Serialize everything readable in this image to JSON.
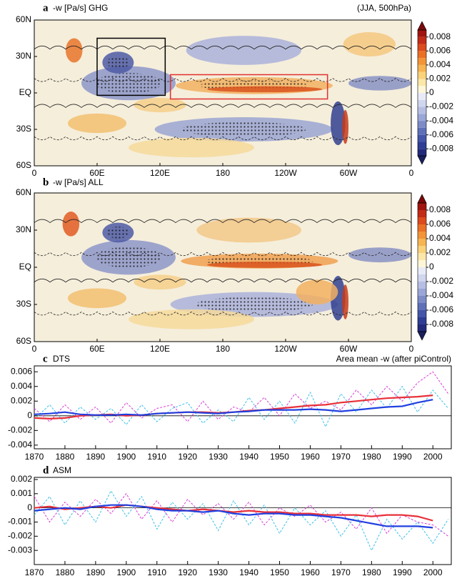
{
  "chart_data": [
    {
      "type": "map",
      "label": "a",
      "title": "-w [Pa/s] GHG",
      "subtitle": "(JJA, 500hPa)",
      "xlim": [
        0,
        360
      ],
      "xticks": [
        0,
        {
          "value": 60,
          "label": "60E"
        },
        {
          "value": 120,
          "label": "120E"
        },
        180,
        {
          "value": 240,
          "label": "120W"
        },
        {
          "value": 300,
          "label": "60W"
        },
        {
          "value": 360,
          "label": "0"
        }
      ],
      "ylim": [
        -60,
        60
      ],
      "yticks": [
        {
          "value": -60,
          "label": "60S"
        },
        {
          "value": -30,
          "label": "30S"
        },
        {
          "value": 0,
          "label": "EQ"
        },
        {
          "value": 30,
          "label": "30N"
        },
        {
          "value": 60,
          "label": "60N"
        }
      ],
      "clim": [
        -0.009,
        0.009
      ],
      "cticks": [
        -0.008,
        -0.006,
        -0.004,
        -0.002,
        0,
        0.002,
        0.004,
        0.006,
        0.008
      ],
      "colors": [
        "#1a1f5e",
        "#232a7a",
        "#2f3d95",
        "#4556a8",
        "#5f70b8",
        "#7d8bc7",
        "#9aa6d6",
        "#b6bfe3",
        "#d0d6ee",
        "#e8ebf7",
        "#fdf6d8",
        "#fbe7a8",
        "#f9d27a",
        "#f6b452",
        "#f29437",
        "#ea7026",
        "#db4b1d",
        "#c22b17",
        "#a0150f",
        "#7a0a0a"
      ]
    },
    {
      "type": "map",
      "label": "b",
      "title": "-w [Pa/s] ALL",
      "xlim": [
        0,
        360
      ],
      "xticks": [
        0,
        {
          "value": 60,
          "label": "60E"
        },
        {
          "value": 120,
          "label": "120E"
        },
        180,
        {
          "value": 240,
          "label": "120W"
        },
        {
          "value": 300,
          "label": "60W"
        },
        {
          "value": 360,
          "label": "0"
        }
      ],
      "ylim": [
        -60,
        60
      ],
      "yticks": [
        {
          "value": -60,
          "label": "60S"
        },
        {
          "value": -30,
          "label": "30S"
        },
        {
          "value": 0,
          "label": "EQ"
        },
        {
          "value": 30,
          "label": "30N"
        },
        {
          "value": 60,
          "label": "60N"
        }
      ],
      "clim": [
        -0.009,
        0.009
      ],
      "cticks": [
        -0.008,
        -0.006,
        -0.004,
        -0.002,
        0,
        0.002,
        0.004,
        0.006,
        0.008
      ],
      "colors": [
        "#1a1f5e",
        "#232a7a",
        "#2f3d95",
        "#4556a8",
        "#5f70b8",
        "#7d8bc7",
        "#9aa6d6",
        "#b6bfe3",
        "#d0d6ee",
        "#e8ebf7",
        "#fdf6d8",
        "#fbe7a8",
        "#f9d27a",
        "#f6b452",
        "#f29437",
        "#ea7026",
        "#db4b1d",
        "#c22b17",
        "#a0150f",
        "#7a0a0a"
      ]
    },
    {
      "type": "line",
      "label": "c",
      "title": "DTS",
      "subtitle": "Area mean -w (after piControl)",
      "x": [
        1870,
        1875,
        1880,
        1885,
        1890,
        1895,
        1900,
        1905,
        1910,
        1915,
        1920,
        1925,
        1930,
        1935,
        1940,
        1945,
        1950,
        1955,
        1960,
        1965,
        1970,
        1975,
        1980,
        1985,
        1990,
        1995,
        2000,
        2005
      ],
      "xlim": [
        1870,
        2006
      ],
      "xticks": [
        1870,
        1880,
        1890,
        1900,
        1910,
        1920,
        1930,
        1940,
        1950,
        1960,
        1970,
        1980,
        1990,
        2000
      ],
      "ylim": [
        -0.0045,
        0.0068
      ],
      "yticks": [
        -0.004,
        -0.002,
        0,
        0.002,
        0.004,
        0.006
      ],
      "series": [
        {
          "color": "#d63cd6",
          "linestyle": "dashed",
          "values": [
            0.001,
            -0.0008,
            0.0015,
            -0.0005,
            0.0012,
            -0.001,
            0.0018,
            -0.0003,
            0.001,
            0.0015,
            -0.0008,
            0.002,
            -0.0005,
            0.0012,
            0.0005,
            0.0025,
            0,
            0.003,
            0.001,
            0.002,
            0.0008,
            0.0035,
            0.0015,
            0.004,
            0.002,
            0.0045,
            0.006,
            0.003
          ]
        },
        {
          "color": "#3cc0e8",
          "linestyle": "dashed",
          "values": [
            -0.0005,
            0.0015,
            -0.001,
            0.0012,
            -0.0005,
            0.001,
            -0.0012,
            0.0015,
            -0.0008,
            0.001,
            0.0018,
            -0.001,
            0.0008,
            -0.0008,
            0.0025,
            -0.0005,
            0.002,
            -0.001,
            0.0032,
            -0.0015,
            0.003,
            0.0005,
            0.0035,
            0.001,
            0.004,
            0.0005,
            0.0035,
            0.001
          ]
        },
        {
          "color": "#e8303a",
          "linestyle": "solid",
          "values": [
            -0.0003,
            -0.0004,
            -0.0003,
            0,
            0.0001,
            0.0002,
            0,
            0.0001,
            0.0003,
            0.0004,
            0.0005,
            0.0005,
            0.0004,
            0.0005,
            0.0007,
            0.0008,
            0.001,
            0.0012,
            0.0014,
            0.0015,
            0.0018,
            0.002,
            0.0022,
            0.0024,
            0.0025,
            0.0026,
            0.0028,
            null
          ]
        },
        {
          "color": "#2040e0",
          "linestyle": "solid",
          "values": [
            0.0002,
            0.0003,
            0.0005,
            0.0002,
            0.0001,
            0.0001,
            0.0002,
            0.0001,
            0.0003,
            0.0004,
            0.0005,
            0.0004,
            0.0003,
            0.0005,
            0.0006,
            0.0008,
            0.0008,
            0.0008,
            0.0009,
            0.0008,
            0.0006,
            0.0008,
            0.001,
            0.0012,
            0.0013,
            0.0018,
            0.0022,
            null
          ]
        }
      ]
    },
    {
      "type": "line",
      "label": "d",
      "title": "ASM",
      "x": [
        1870,
        1875,
        1880,
        1885,
        1890,
        1895,
        1900,
        1905,
        1910,
        1915,
        1920,
        1925,
        1930,
        1935,
        1940,
        1945,
        1950,
        1955,
        1960,
        1965,
        1970,
        1975,
        1980,
        1985,
        1990,
        1995,
        2000,
        2005
      ],
      "xlim": [
        1870,
        2006
      ],
      "xticks": [
        1870,
        1880,
        1890,
        1900,
        1910,
        1920,
        1930,
        1940,
        1950,
        1960,
        1970,
        1980,
        1990,
        2000
      ],
      "ylim": [
        -0.004,
        0.00215
      ],
      "yticks": [
        -0.003,
        -0.002,
        -0.001,
        0,
        0.001,
        0.002
      ],
      "series": [
        {
          "color": "#d63cd6",
          "linestyle": "dashed",
          "values": [
            0.0008,
            -0.001,
            0.0004,
            -0.0006,
            0.0006,
            -0.0004,
            0.001,
            -0.0008,
            0.0005,
            -0.001,
            0.0006,
            -0.0005,
            0.0003,
            -0.0008,
            0.0004,
            -0.0012,
            0,
            -0.0006,
            0.0002,
            -0.001,
            -0.0003,
            -0.0015,
            0,
            -0.0018,
            -0.0005,
            -0.001,
            -0.0012,
            -0.002
          ]
        },
        {
          "color": "#3cc0e8",
          "linestyle": "dashed",
          "values": [
            -0.0005,
            0.0008,
            -0.0012,
            0.0005,
            -0.001,
            0.0012,
            -0.0006,
            0.0008,
            -0.0015,
            0.0004,
            -0.0008,
            0.0003,
            -0.0016,
            0.0005,
            -0.0012,
            0.0002,
            -0.0018,
            0,
            -0.0012,
            -0.0002,
            -0.002,
            -0.0005,
            -0.003,
            -0.0008,
            -0.0022,
            -0.001,
            -0.0025,
            -0.0008
          ]
        },
        {
          "color": "#e8303a",
          "linestyle": "solid",
          "values": [
            0,
            0.0001,
            -0.0001,
            0,
            0.0001,
            0,
            0.0002,
            0.0001,
            0,
            -0.0001,
            -0.0002,
            -0.0001,
            -0.0002,
            -0.0003,
            -0.0002,
            -0.0003,
            -0.0003,
            -0.0004,
            -0.0004,
            -0.0005,
            -0.0005,
            -0.0005,
            -0.0006,
            -0.0005,
            -0.0005,
            -0.0006,
            -0.0009,
            null
          ]
        },
        {
          "color": "#2040e0",
          "linestyle": "solid",
          "values": [
            -0.0002,
            -0.0001,
            0,
            -0.0001,
            0.0001,
            0.0002,
            0.0002,
            0.0001,
            -0.0001,
            -0.0002,
            -0.0002,
            -0.0003,
            -0.0002,
            -0.0004,
            -0.0005,
            -0.0004,
            -0.0004,
            -0.0005,
            -0.0005,
            -0.0006,
            -0.0007,
            -0.0009,
            -0.0011,
            -0.0013,
            -0.0013,
            -0.0013,
            -0.0014,
            null
          ]
        }
      ]
    }
  ]
}
